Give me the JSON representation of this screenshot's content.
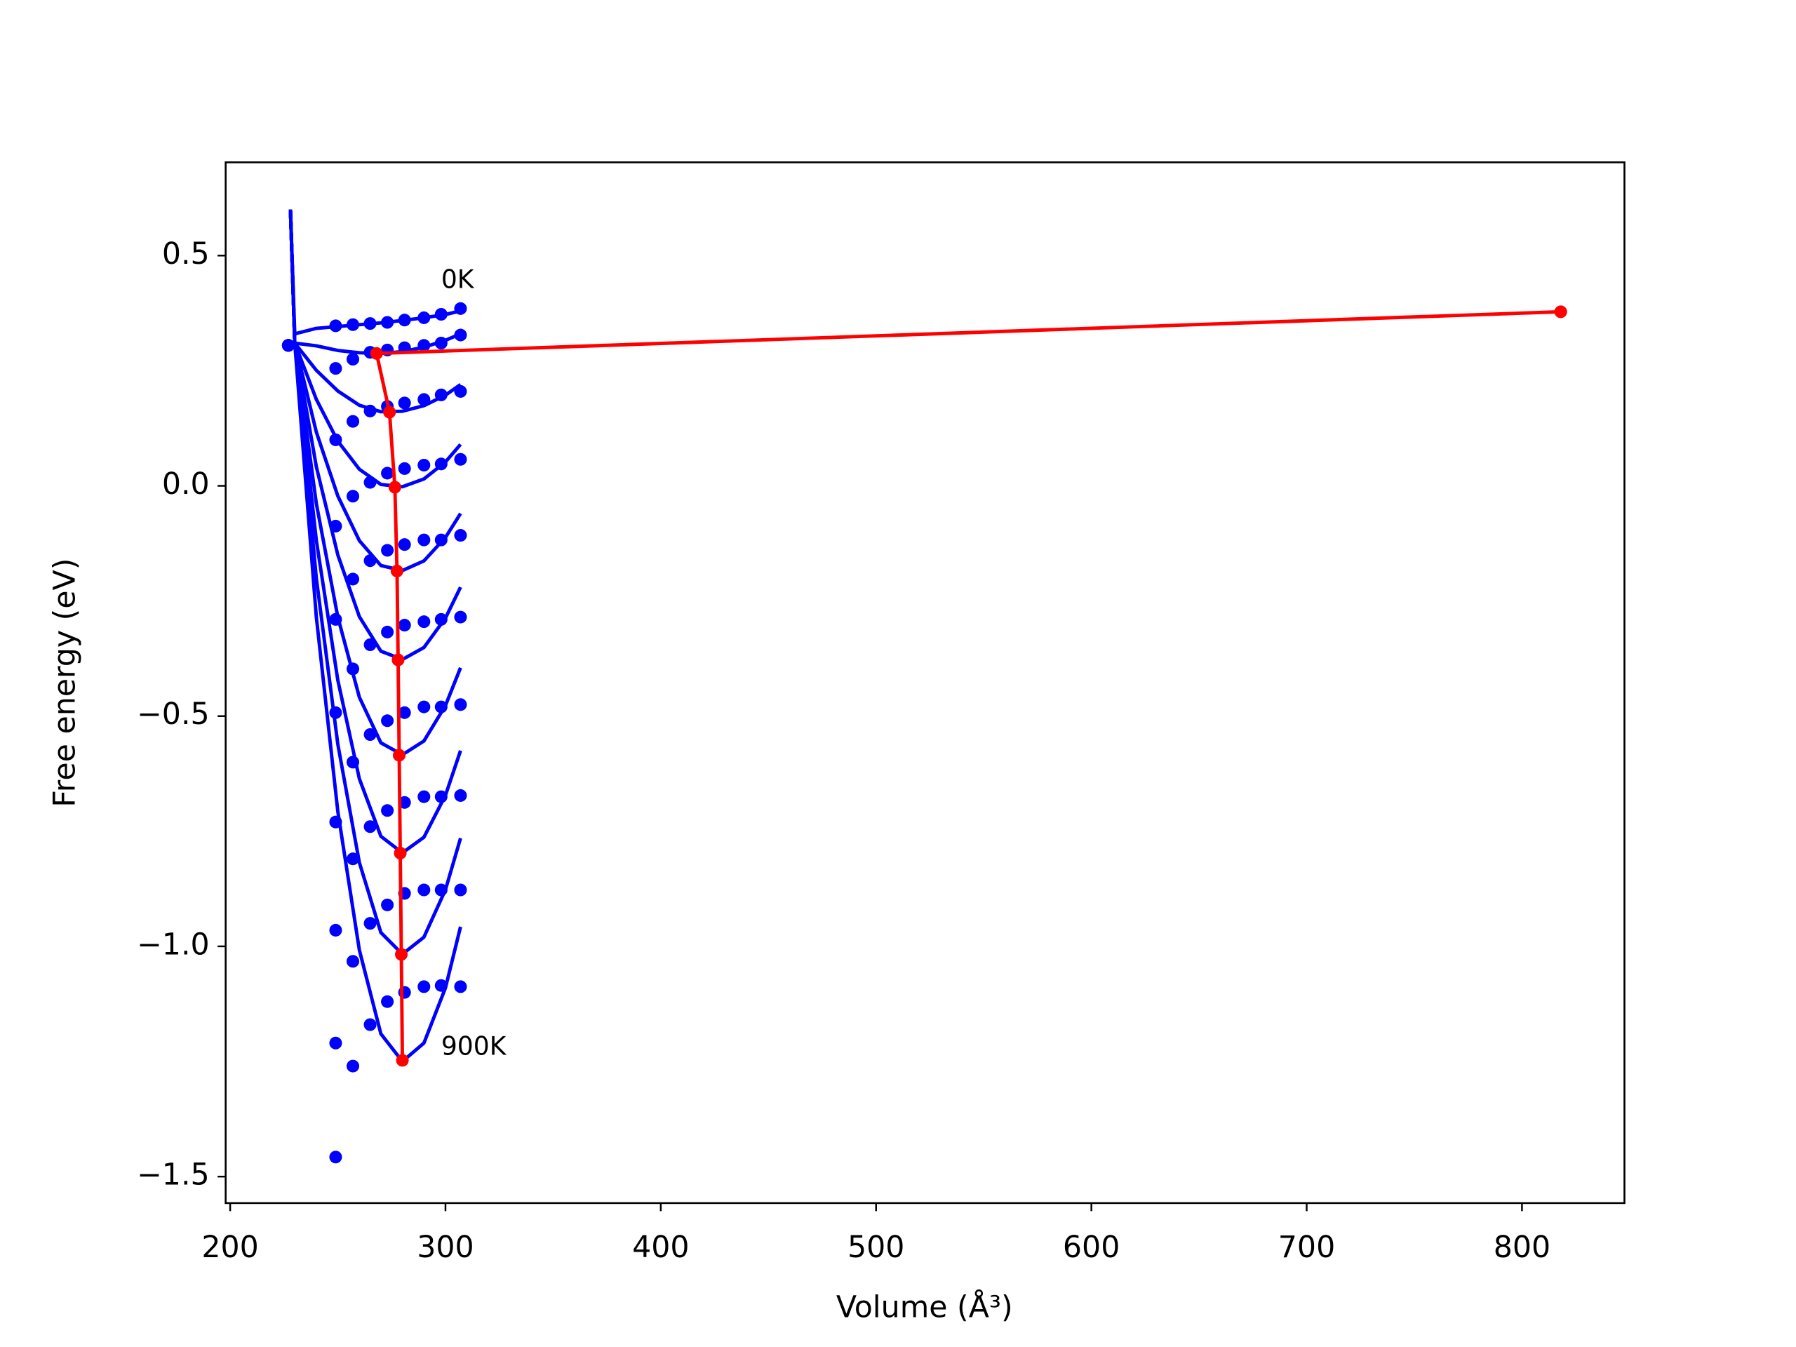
{
  "chart_data": {
    "type": "line",
    "xlabel": "Volume (Å³)",
    "ylabel": "Free energy (eV)",
    "xlim": [
      197.9,
      847.6
    ],
    "ylim": [
      -1.5575,
      0.7025
    ],
    "xticks": [
      200,
      300,
      400,
      500,
      600,
      700,
      800
    ],
    "yticks": [
      {
        "value": -1.5,
        "label": "−1.5"
      },
      {
        "value": -1.0,
        "label": "−1.0"
      },
      {
        "value": -0.5,
        "label": "−0.5"
      },
      {
        "value": 0,
        "label": "0.0"
      },
      0.5
    ],
    "annotations": [
      {
        "text": "0K",
        "x": 298,
        "y": 0.445
      },
      {
        "text": "900K",
        "x": 298,
        "y": -1.22
      }
    ],
    "series": [
      {
        "color": "#0000ff",
        "mode": "line",
        "x": [
          228,
          230,
          240,
          250,
          260,
          270,
          280,
          290,
          300,
          307
        ],
        "values": [
          0.6,
          0.33,
          0.342,
          0.346,
          0.35,
          0.354,
          0.359,
          0.365,
          0.372,
          0.38
        ]
      },
      {
        "color": "#0000ff",
        "mode": "line",
        "x": [
          228,
          230,
          240,
          250,
          260,
          270,
          280,
          290,
          300,
          307
        ],
        "values": [
          0.6,
          0.31,
          0.304,
          0.294,
          0.289,
          0.2875,
          0.2915,
          0.301,
          0.316,
          0.33
        ]
      },
      {
        "color": "#0000ff",
        "mode": "line",
        "x": [
          228,
          230,
          240,
          250,
          260,
          270,
          280,
          290,
          300,
          307
        ],
        "values": [
          0.6,
          0.31,
          0.251,
          0.206,
          0.175,
          0.161,
          0.162,
          0.174,
          0.197,
          0.22
        ]
      },
      {
        "color": "#0000ff",
        "mode": "line",
        "x": [
          228,
          230,
          240,
          250,
          260,
          270,
          280,
          290,
          300,
          307
        ],
        "values": [
          0.6,
          0.31,
          0.188,
          0.097,
          0.036,
          0.003,
          -0.002,
          0.015,
          0.052,
          0.09
        ]
      },
      {
        "color": "#0000ff",
        "mode": "line",
        "x": [
          228,
          230,
          240,
          250,
          260,
          270,
          280,
          290,
          300,
          307
        ],
        "values": [
          0.6,
          0.31,
          0.117,
          -0.022,
          -0.119,
          -0.173,
          -0.184,
          -0.163,
          -0.112,
          -0.06
        ]
      },
      {
        "color": "#0000ff",
        "mode": "line",
        "x": [
          228,
          230,
          240,
          250,
          260,
          270,
          280,
          290,
          300,
          307
        ],
        "values": [
          0.6,
          0.31,
          0.042,
          -0.15,
          -0.284,
          -0.359,
          -0.377,
          -0.351,
          -0.287,
          -0.22
        ]
      },
      {
        "color": "#0000ff",
        "mode": "line",
        "x": [
          228,
          230,
          240,
          250,
          260,
          270,
          280,
          290,
          300,
          307
        ],
        "values": [
          0.6,
          0.31,
          -0.038,
          -0.285,
          -0.459,
          -0.558,
          -0.584,
          -0.554,
          -0.477,
          -0.395
        ]
      },
      {
        "color": "#0000ff",
        "mode": "line",
        "x": [
          228,
          230,
          240,
          250,
          260,
          270,
          280,
          290,
          300,
          307
        ],
        "values": [
          0.6,
          0.31,
          -0.118,
          -0.422,
          -0.636,
          -0.761,
          -0.797,
          -0.763,
          -0.672,
          -0.575
        ]
      },
      {
        "color": "#0000ff",
        "mode": "line",
        "x": [
          228,
          230,
          240,
          250,
          260,
          270,
          280,
          290,
          300,
          307
        ],
        "values": [
          0.6,
          0.31,
          -0.2,
          -0.561,
          -0.818,
          -0.97,
          -1.017,
          -0.98,
          -0.877,
          -0.765
        ]
      },
      {
        "color": "#0000ff",
        "mode": "line",
        "x": [
          228,
          230,
          240,
          250,
          260,
          270,
          280,
          290,
          300,
          307
        ],
        "values": [
          0.6,
          0.31,
          -0.284,
          -0.707,
          -1.008,
          -1.19,
          -1.25,
          -1.21,
          -1.09,
          -0.9575
        ]
      },
      {
        "color": "#0000ff",
        "mode": "markers",
        "x": [
          227,
          249,
          257,
          265,
          273,
          281,
          290,
          298,
          307
        ],
        "values": [
          0.305,
          0.3475,
          0.35,
          0.3525,
          0.355,
          0.36,
          0.365,
          0.3725,
          0.385
        ]
      },
      {
        "color": "#0000ff",
        "mode": "markers",
        "x": [
          227,
          249,
          257,
          265,
          273,
          281,
          290,
          298,
          307
        ],
        "values": [
          0.305,
          0.255,
          0.275,
          0.29,
          0.295,
          0.3,
          0.305,
          0.31,
          0.3275
        ]
      },
      {
        "color": "#0000ff",
        "mode": "markers",
        "x": [
          227,
          249,
          257,
          265,
          273,
          281,
          290,
          298,
          307
        ],
        "values": [
          0.305,
          0.1,
          0.14,
          0.1625,
          0.1725,
          0.18,
          0.1875,
          0.1975,
          0.205
        ]
      },
      {
        "color": "#0000ff",
        "mode": "markers",
        "x": [
          227,
          249,
          257,
          265,
          273,
          281,
          290,
          298,
          307
        ],
        "values": [
          0.305,
          -0.0875,
          -0.0225,
          0.0075,
          0.0275,
          0.0375,
          0.045,
          0.0475,
          0.0575
        ]
      },
      {
        "color": "#0000ff",
        "mode": "markers",
        "x": [
          227,
          249,
          257,
          265,
          273,
          281,
          290,
          298,
          307
        ],
        "values": [
          0.305,
          -0.29,
          -0.2025,
          -0.1625,
          -0.14,
          -0.1275,
          -0.1175,
          -0.1175,
          -0.1075
        ]
      },
      {
        "color": "#0000ff",
        "mode": "markers",
        "x": [
          227,
          249,
          257,
          265,
          273,
          281,
          290,
          298,
          307
        ],
        "values": [
          0.305,
          -0.4925,
          -0.3975,
          -0.345,
          -0.3175,
          -0.3025,
          -0.295,
          -0.29,
          -0.285
        ]
      },
      {
        "color": "#0000ff",
        "mode": "markers",
        "x": [
          227,
          249,
          257,
          265,
          273,
          281,
          290,
          298,
          307
        ],
        "values": [
          0.305,
          -0.73,
          -0.6,
          -0.54,
          -0.51,
          -0.4925,
          -0.48,
          -0.48,
          -0.475
        ]
      },
      {
        "color": "#0000ff",
        "mode": "markers",
        "x": [
          227,
          249,
          257,
          265,
          273,
          281,
          290,
          298,
          307
        ],
        "values": [
          0.305,
          -0.965,
          -0.81,
          -0.74,
          -0.705,
          -0.6875,
          -0.675,
          -0.675,
          -0.6725
        ]
      },
      {
        "color": "#0000ff",
        "mode": "markers",
        "x": [
          227,
          249,
          257,
          265,
          273,
          281,
          290,
          298,
          307
        ],
        "values": [
          0.305,
          -1.21,
          -1.0325,
          -0.95,
          -0.91,
          -0.885,
          -0.8775,
          -0.8775,
          -0.8775
        ]
      },
      {
        "color": "#0000ff",
        "mode": "markers",
        "x": [
          227,
          249,
          257,
          265,
          273,
          281,
          290,
          298,
          307
        ],
        "values": [
          0.305,
          -1.4575,
          -1.26,
          -1.17,
          -1.12,
          -1.1,
          -1.0875,
          -1.085,
          -1.0875
        ]
      },
      {
        "color": "#ff0000",
        "mode": "line+markers",
        "x": [
          818,
          268,
          274,
          276.5,
          277.5,
          278,
          278.5,
          279,
          279.5,
          280
        ],
        "values": [
          0.378,
          0.2875,
          0.16,
          -0.003,
          -0.185,
          -0.378,
          -0.585,
          -0.7975,
          -1.0175,
          -1.2475
        ]
      }
    ]
  }
}
